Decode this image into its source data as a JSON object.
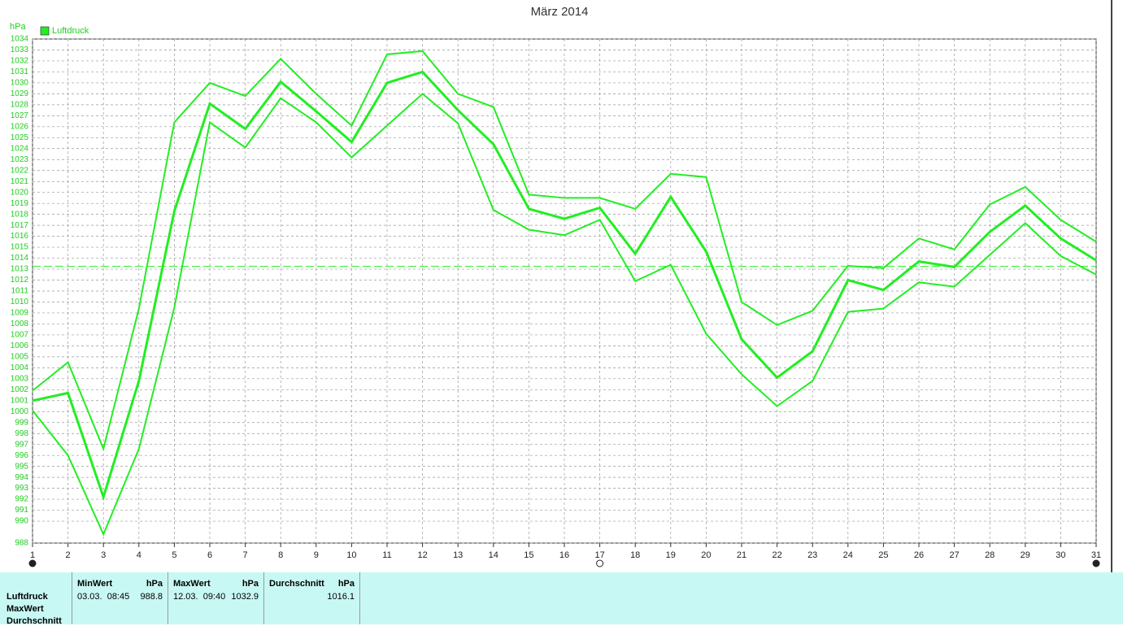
{
  "chart_data": {
    "type": "line",
    "title": "März 2014",
    "y_label": "hPa",
    "x": [
      1,
      2,
      3,
      4,
      5,
      6,
      7,
      8,
      9,
      10,
      11,
      12,
      13,
      14,
      15,
      16,
      17,
      18,
      19,
      20,
      21,
      22,
      23,
      24,
      25,
      26,
      27,
      28,
      29,
      30,
      31
    ],
    "xlim": [
      1,
      31
    ],
    "xticks": [
      1,
      2,
      3,
      4,
      5,
      6,
      7,
      8,
      9,
      10,
      11,
      12,
      13,
      14,
      15,
      16,
      17,
      18,
      19,
      20,
      21,
      22,
      23,
      24,
      25,
      26,
      27,
      28,
      29,
      30,
      31
    ],
    "ylim": [
      988,
      1034
    ],
    "yticks": [
      988,
      990,
      991,
      992,
      993,
      994,
      995,
      996,
      997,
      998,
      999,
      1000,
      1001,
      1002,
      1003,
      1004,
      1005,
      1006,
      1007,
      1008,
      1009,
      1010,
      1011,
      1012,
      1013,
      1014,
      1015,
      1016,
      1017,
      1018,
      1019,
      1020,
      1021,
      1022,
      1023,
      1024,
      1025,
      1026,
      1027,
      1028,
      1029,
      1030,
      1031,
      1032,
      1033,
      1034
    ],
    "grid": true,
    "legend": "top-left",
    "reference_line": 1013.25,
    "series": [
      {
        "name": "Luftdruck",
        "color": "#22ee22",
        "width": 3,
        "values": [
          1001.0,
          1001.7,
          992.2,
          1002.8,
          1018.3,
          1028.1,
          1025.8,
          1030.1,
          1027.4,
          1024.6,
          1030.0,
          1031.0,
          1027.5,
          1024.4,
          1018.5,
          1017.6,
          1018.6,
          1014.4,
          1019.6,
          1014.6,
          1006.6,
          1003.1,
          1005.5,
          1012.0,
          1011.1,
          1013.7,
          1013.2,
          1016.4,
          1018.8,
          1015.8,
          1013.8
        ]
      },
      {
        "color": "#22ee22",
        "width": 2,
        "values": [
          1001.9,
          1004.5,
          996.6,
          1009.4,
          1026.4,
          1030.0,
          1028.8,
          1032.2,
          1029.0,
          1026.1,
          1032.6,
          1032.9,
          1029.0,
          1027.8,
          1019.8,
          1019.5,
          1019.5,
          1018.5,
          1021.7,
          1021.4,
          1010.0,
          1007.9,
          1009.2,
          1013.3,
          1013.1,
          1015.8,
          1014.8,
          1018.9,
          1020.5,
          1017.5,
          1015.5
        ]
      },
      {
        "color": "#22ee22",
        "width": 2,
        "values": [
          1000.1,
          996.0,
          988.8,
          996.6,
          1009.5,
          1026.4,
          1024.1,
          1028.6,
          1026.4,
          1023.2,
          1026.1,
          1029.0,
          1026.3,
          1018.4,
          1016.6,
          1016.1,
          1017.5,
          1011.9,
          1013.4,
          1007.1,
          1003.4,
          1000.5,
          1002.8,
          1009.1,
          1009.4,
          1011.8,
          1011.4,
          1014.3,
          1017.2,
          1014.2,
          1012.5
        ]
      }
    ]
  },
  "table": {
    "row_labels": [
      "Luftdruck",
      "MaxWert",
      "Durchschnitt"
    ],
    "columns": [
      {
        "header": "MinWert",
        "unit": "hPa",
        "time": "03.03.  08:45",
        "value": 988.8
      },
      {
        "header": "MaxWert",
        "unit": "hPa",
        "time": "12.03.  09:40",
        "value": 1032.9
      },
      {
        "header": "Durchschnitt",
        "unit": "hPa",
        "value": 1016.1
      }
    ]
  }
}
